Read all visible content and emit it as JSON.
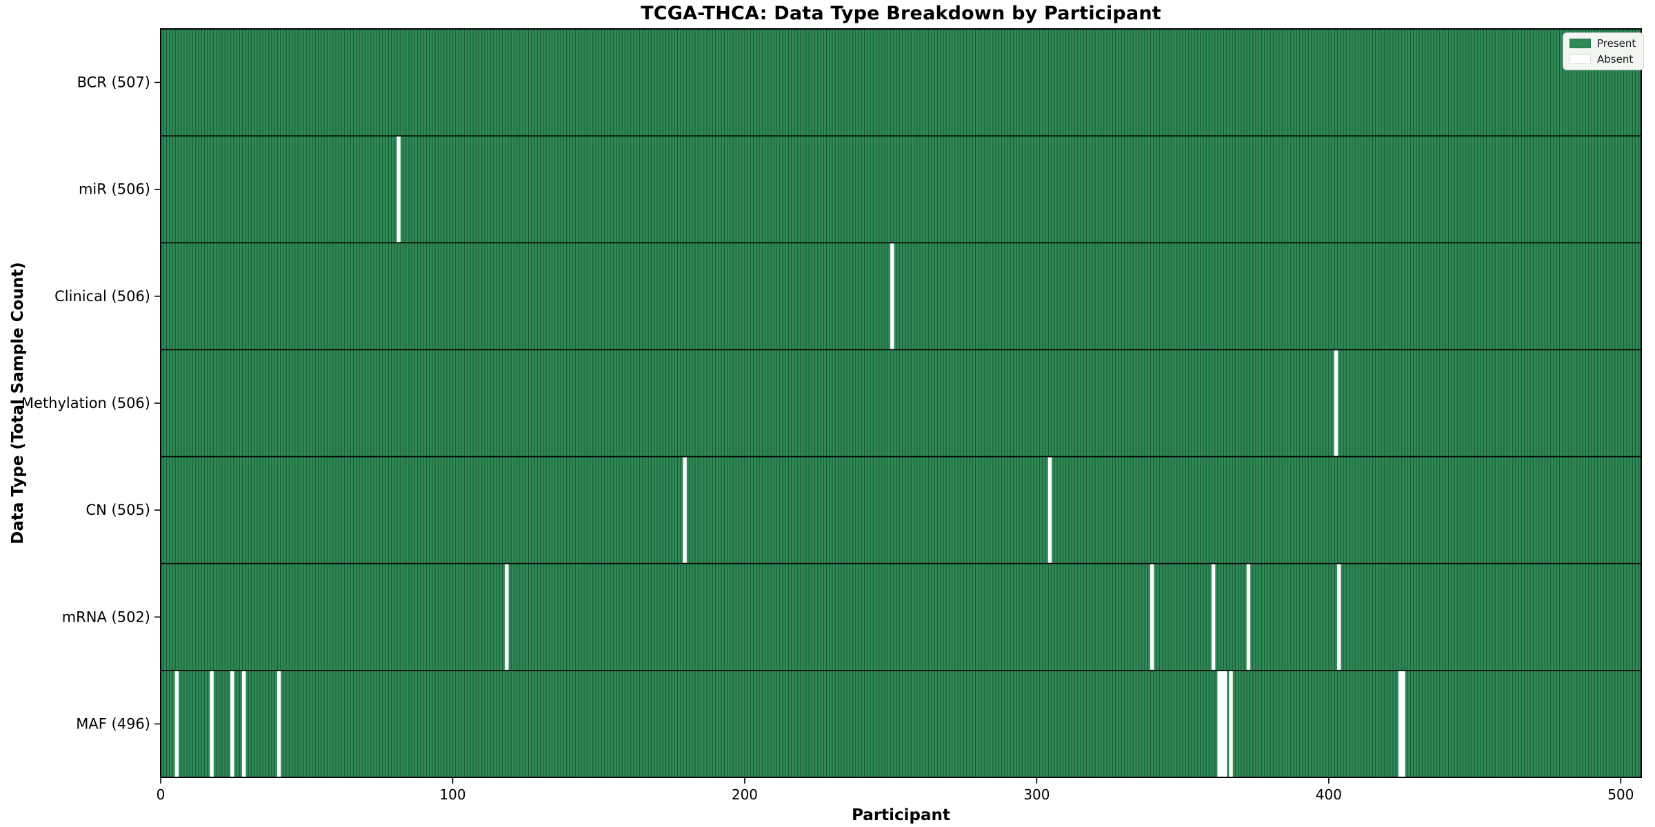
{
  "chart_data": {
    "type": "heatmap",
    "title": "TCGA-THCA: Data Type Breakdown by Participant",
    "xlabel": "Participant",
    "ylabel": "Data Type (Total Sample Count)",
    "x_ticks": [
      0,
      100,
      200,
      300,
      400,
      500
    ],
    "xlim": [
      0,
      507
    ],
    "n_participants": 507,
    "grid": false,
    "legend_position": "upper right",
    "legend": {
      "entries": [
        {
          "label": "Present",
          "color": "#2e8b57"
        },
        {
          "label": "Absent",
          "color": "#ffffff"
        }
      ]
    },
    "rows": [
      {
        "label": "BCR (507)",
        "data_type": "BCR",
        "total": 507,
        "absent_participants": []
      },
      {
        "label": "miR (506)",
        "data_type": "miR",
        "total": 506,
        "absent_participants": [
          81
        ]
      },
      {
        "label": "Clinical (506)",
        "data_type": "Clinical",
        "total": 506,
        "absent_participants": [
          250
        ]
      },
      {
        "label": "Methylation (506)",
        "data_type": "Methylation",
        "total": 506,
        "absent_participants": [
          402
        ]
      },
      {
        "label": "CN (505)",
        "data_type": "CN",
        "total": 505,
        "absent_participants": [
          179,
          304
        ]
      },
      {
        "label": "mRNA (502)",
        "data_type": "mRNA",
        "total": 502,
        "absent_participants": [
          118,
          339,
          360,
          372,
          403
        ]
      },
      {
        "label": "MAF (496)",
        "data_type": "MAF",
        "total": 496,
        "absent_participants": [
          5,
          17,
          24,
          28,
          40,
          362,
          363,
          364,
          366,
          424,
          425
        ]
      }
    ],
    "colors": {
      "present": "#2e8b57",
      "absent": "#ffffff",
      "bar_edge": "#1c4f31",
      "frame": "#000000",
      "tick_text": "#000000"
    }
  }
}
